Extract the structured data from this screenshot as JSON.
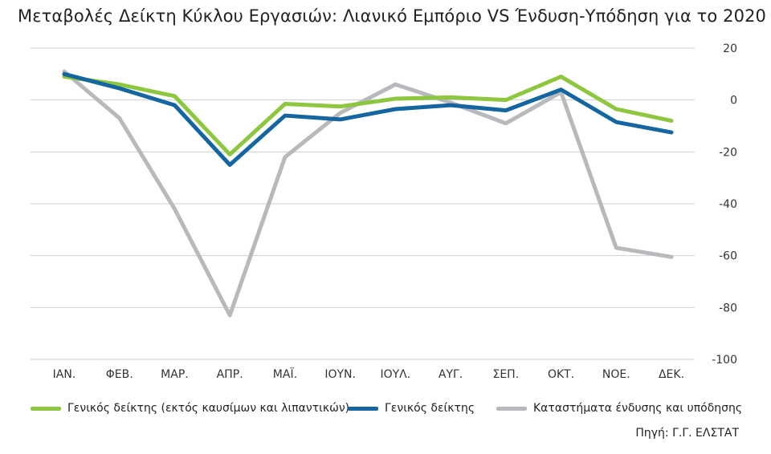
{
  "chart_data": {
    "type": "line",
    "title": "Μεταβολές Δείκτη Κύκλου Εργασιών: Λιανικό Εμπόριο VS Ένδυση-Υπόδηση για το 2020",
    "categories": [
      "ΙΑΝ.",
      "ΦΕΒ.",
      "ΜΑΡ.",
      "ΑΠΡ.",
      "ΜΑΪ.",
      "ΙΟΥΝ.",
      "ΙΟΥΛ.",
      "ΑΥΓ.",
      "ΣΕΠ.",
      "ΟΚΤ.",
      "ΝΟΕ.",
      "ΔΕΚ."
    ],
    "y_ticks": [
      20,
      0,
      -20,
      -40,
      -60,
      -80,
      -100
    ],
    "ylim": [
      -100,
      20
    ],
    "y_axis_side": "right",
    "grid": true,
    "legend_position": "bottom",
    "series": [
      {
        "name": "Γενικός δείκτης (εκτός καυσίμων και λιπαντικών)",
        "color": "#8dc63f",
        "values": [
          9,
          6,
          1.5,
          -21,
          -1.5,
          -2.5,
          0.5,
          1,
          0,
          9,
          -3.5,
          -8
        ]
      },
      {
        "name": "Γενικός δείκτης",
        "color": "#1565a0",
        "values": [
          10,
          4.5,
          -2,
          -25,
          -6,
          -7.5,
          -3.5,
          -2,
          -4,
          4,
          -8.5,
          -12.5
        ]
      },
      {
        "name": "Καταστήματα ένδυσης και υπόδησης",
        "color": "#b8b9bc",
        "values": [
          11,
          -7,
          -42,
          -83,
          -22,
          -5,
          6,
          -1,
          -9,
          3,
          -57,
          -60.5
        ]
      }
    ]
  },
  "source": "Πηγή: Γ.Γ. ΕΛΣΤΑΤ"
}
